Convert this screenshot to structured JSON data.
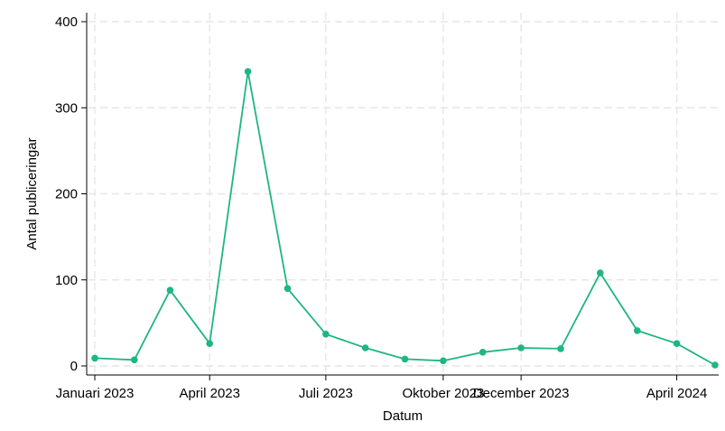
{
  "chart_data": {
    "type": "line",
    "xlabel": "Datum",
    "ylabel": "Antal publiceringar",
    "x_tick_labels": [
      "Januari 2023",
      "April 2023",
      "Juli 2023",
      "Oktober 2023",
      "December 2023",
      "April 2024"
    ],
    "x_tick_dates": [
      "2023-01-01",
      "2023-04-01",
      "2023-07-01",
      "2023-10-01",
      "2023-12-01",
      "2024-04-01"
    ],
    "y_ticks": [
      0,
      100,
      200,
      300,
      400
    ],
    "y_tick_labels": [
      "0",
      "100",
      "200",
      "300",
      "400"
    ],
    "xlim": [
      "2023-01-01",
      "2024-05-01"
    ],
    "ylim": [
      0,
      400
    ],
    "grid": true,
    "series": [
      {
        "color": "#1fb584",
        "x": [
          "2023-01-01",
          "2023-02-01",
          "2023-03-01",
          "2023-04-01",
          "2023-05-01",
          "2023-06-01",
          "2023-07-01",
          "2023-08-01",
          "2023-09-01",
          "2023-10-01",
          "2023-11-01",
          "2023-12-01",
          "2024-01-01",
          "2024-02-01",
          "2024-03-01",
          "2024-04-01",
          "2024-05-01"
        ],
        "values": [
          9,
          7,
          88,
          26,
          342,
          90,
          37,
          21,
          8,
          6,
          16,
          21,
          20,
          108,
          41,
          26,
          1
        ]
      }
    ]
  }
}
